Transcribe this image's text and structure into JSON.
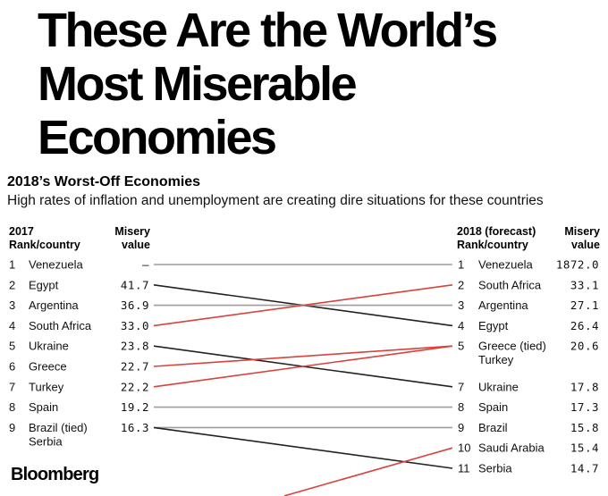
{
  "headline": "These Are the World’s Most Miserable Economies",
  "subtitle": "2018’s Worst-Off Economies",
  "dek": "High rates of inflation and unemployment are creating dire situations for these countries",
  "left_header": {
    "col1": "2017\nRank/country",
    "col2": "Misery\nvalue"
  },
  "right_header": {
    "col1": "2018 (forecast)\nRank/country",
    "col2": "Misery\nvalue"
  },
  "logo": "Bloomberg",
  "chart_data": {
    "type": "slope",
    "left": [
      {
        "rank": "1",
        "country": "Venezuela",
        "value": "–"
      },
      {
        "rank": "2",
        "country": "Egypt",
        "value": "41.7"
      },
      {
        "rank": "3",
        "country": "Argentina",
        "value": "36.9"
      },
      {
        "rank": "4",
        "country": "South Africa",
        "value": "33.0"
      },
      {
        "rank": "5",
        "country": "Ukraine",
        "value": "23.8"
      },
      {
        "rank": "6",
        "country": "Greece",
        "value": "22.7"
      },
      {
        "rank": "7",
        "country": "Turkey",
        "value": "22.2"
      },
      {
        "rank": "8",
        "country": "Spain",
        "value": "19.2"
      },
      {
        "rank": "9",
        "country": "Brazil (tied)\nSerbia",
        "value": "16.3"
      }
    ],
    "right": [
      {
        "rank": "1",
        "country": "Venezuela",
        "value": "1872.0"
      },
      {
        "rank": "2",
        "country": "South Africa",
        "value": "33.1"
      },
      {
        "rank": "3",
        "country": "Argentina",
        "value": "27.1"
      },
      {
        "rank": "4",
        "country": "Egypt",
        "value": "26.4"
      },
      {
        "rank": "5",
        "country": "Greece (tied)\nTurkey",
        "value": "20.6"
      },
      {
        "rank": "7",
        "country": "Ukraine",
        "value": "17.8"
      },
      {
        "rank": "8",
        "country": "Spain",
        "value": "17.3"
      },
      {
        "rank": "9",
        "country": "Brazil",
        "value": "15.8"
      },
      {
        "rank": "10",
        "country": "Saudi Arabia",
        "value": "15.4"
      },
      {
        "rank": "11",
        "country": "Serbia",
        "value": "14.7"
      }
    ],
    "links": [
      {
        "from": 1,
        "to": 1,
        "color": "#9e9e9e"
      },
      {
        "from": 2,
        "to": 4,
        "color": "#222222"
      },
      {
        "from": 3,
        "to": 3,
        "color": "#9e9e9e"
      },
      {
        "from": 4,
        "to": 2,
        "color": "#d9423b"
      },
      {
        "from": 5,
        "to": 7,
        "color": "#222222"
      },
      {
        "from": 6,
        "to": 5,
        "color": "#d9423b"
      },
      {
        "from": 7,
        "to": 5,
        "color": "#d9423b"
      },
      {
        "from": 8,
        "to": 8,
        "color": "#9e9e9e"
      },
      {
        "from": 9,
        "to": 9,
        "color": "#9e9e9e"
      },
      {
        "from": 9,
        "to": 11,
        "color": "#222222"
      },
      {
        "from": "below",
        "to": 10,
        "color": "#d9423b"
      }
    ],
    "colors": {
      "improved": "#d9423b",
      "worsened": "#222222",
      "unchanged": "#9e9e9e"
    }
  }
}
